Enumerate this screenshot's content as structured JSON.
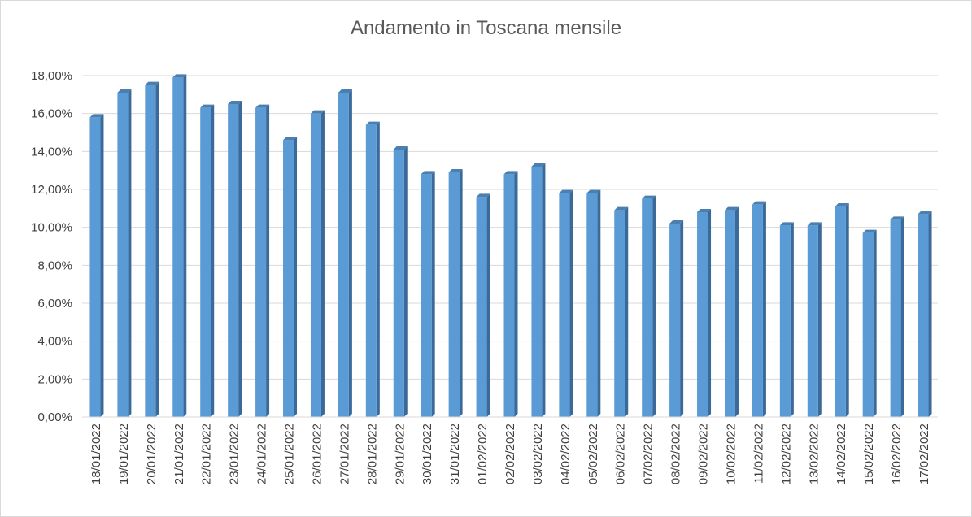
{
  "chart_data": {
    "type": "bar",
    "title": "Andamento in Toscana mensile",
    "xlabel": "",
    "ylabel": "",
    "ylim": [
      0,
      18
    ],
    "y_ticks": [
      "0,00%",
      "2,00%",
      "4,00%",
      "6,00%",
      "8,00%",
      "10,00%",
      "12,00%",
      "14,00%",
      "16,00%",
      "18,00%"
    ],
    "y_tick_values": [
      0,
      2,
      4,
      6,
      8,
      10,
      12,
      14,
      16,
      18
    ],
    "grid": true,
    "bar_color": "#5b9bd5",
    "bar_side_color": "#3a6a9a",
    "categories": [
      "18/01/2022",
      "19/01/2022",
      "20/01/2022",
      "21/01/2022",
      "22/01/2022",
      "23/01/2022",
      "24/01/2022",
      "25/01/2022",
      "26/01/2022",
      "27/01/2022",
      "28/01/2022",
      "29/01/2022",
      "30/01/2022",
      "31/01/2022",
      "01/02/2022",
      "02/02/2022",
      "03/02/2022",
      "04/02/2022",
      "05/02/2022",
      "06/02/2022",
      "07/02/2022",
      "08/02/2022",
      "09/02/2022",
      "10/02/2022",
      "11/02/2022",
      "12/02/2022",
      "13/02/2022",
      "14/02/2022",
      "15/02/2022",
      "16/02/2022",
      "17/02/2022"
    ],
    "values": [
      15.8,
      17.1,
      17.5,
      17.9,
      16.3,
      16.5,
      16.3,
      14.6,
      16.0,
      17.1,
      15.4,
      14.1,
      12.8,
      12.9,
      11.6,
      12.8,
      13.2,
      11.8,
      11.8,
      10.9,
      11.5,
      10.2,
      10.8,
      10.9,
      11.2,
      10.1,
      10.1,
      11.1,
      9.7,
      10.4,
      10.7
    ]
  }
}
